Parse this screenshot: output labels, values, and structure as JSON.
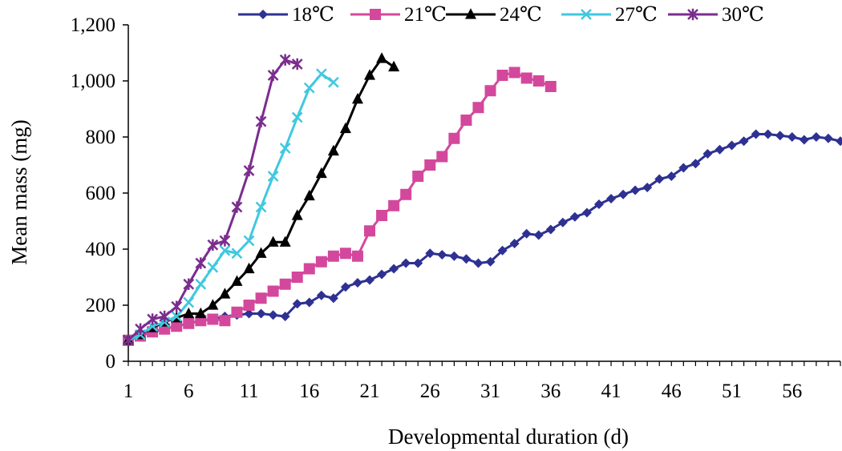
{
  "chart_data": {
    "type": "line",
    "xlabel": "Developmental duration (d)",
    "ylabel": "Mean mass (mg)",
    "xlim": [
      1,
      60
    ],
    "ylim": [
      0,
      1200
    ],
    "x_ticks": [
      1,
      6,
      11,
      16,
      21,
      26,
      31,
      36,
      41,
      46,
      51,
      56
    ],
    "x_tick_labels": [
      "1",
      "6",
      "11",
      "16",
      "21",
      "26",
      "31",
      "36",
      "41",
      "46",
      "51",
      "56"
    ],
    "y_ticks": [
      0,
      200,
      400,
      600,
      800,
      1000,
      1200
    ],
    "y_tick_labels": [
      "0",
      "200",
      "400",
      "600",
      "800",
      "1,000",
      "1,200"
    ],
    "grid": false,
    "legend_position": "top",
    "series": [
      {
        "name": "18℃",
        "color": "#2e3192",
        "marker": "diamond",
        "x": [
          1,
          2,
          3,
          4,
          5,
          6,
          7,
          8,
          9,
          10,
          11,
          12,
          13,
          14,
          15,
          16,
          17,
          18,
          19,
          20,
          21,
          22,
          23,
          24,
          25,
          26,
          27,
          28,
          29,
          30,
          31,
          32,
          33,
          34,
          35,
          36,
          37,
          38,
          39,
          40,
          41,
          42,
          43,
          44,
          45,
          46,
          47,
          48,
          49,
          50,
          51,
          52,
          53,
          54,
          55,
          56,
          57,
          58,
          59,
          60
        ],
        "values": [
          75,
          90,
          105,
          115,
          125,
          135,
          145,
          150,
          160,
          165,
          170,
          170,
          165,
          160,
          205,
          210,
          235,
          225,
          265,
          280,
          290,
          310,
          330,
          350,
          350,
          385,
          380,
          375,
          365,
          350,
          355,
          395,
          420,
          455,
          450,
          470,
          495,
          515,
          530,
          560,
          580,
          595,
          610,
          620,
          650,
          660,
          690,
          705,
          740,
          755,
          770,
          785,
          810,
          810,
          805,
          800,
          790,
          800,
          795,
          785
        ]
      },
      {
        "name": "21℃",
        "color": "#d3489c",
        "marker": "square",
        "x": [
          1,
          2,
          3,
          4,
          5,
          6,
          7,
          8,
          9,
          10,
          11,
          12,
          13,
          14,
          15,
          16,
          17,
          18,
          19,
          20,
          21,
          22,
          23,
          24,
          25,
          26,
          27,
          28,
          29,
          30,
          31,
          32,
          33,
          34,
          35,
          36
        ],
        "values": [
          75,
          90,
          105,
          115,
          125,
          135,
          145,
          150,
          145,
          175,
          200,
          225,
          250,
          275,
          300,
          330,
          355,
          375,
          385,
          375,
          465,
          520,
          555,
          595,
          660,
          700,
          730,
          795,
          860,
          905,
          965,
          1020,
          1030,
          1010,
          1000,
          980
        ]
      },
      {
        "name": "24℃",
        "color": "#000000",
        "marker": "triangle",
        "x": [
          1,
          2,
          3,
          4,
          5,
          6,
          7,
          8,
          9,
          10,
          11,
          12,
          13,
          14,
          15,
          16,
          17,
          18,
          19,
          20,
          21,
          22,
          23
        ],
        "values": [
          75,
          95,
          120,
          140,
          155,
          170,
          170,
          200,
          240,
          285,
          330,
          385,
          425,
          425,
          520,
          590,
          670,
          750,
          830,
          935,
          1020,
          1080,
          1050
        ]
      },
      {
        "name": "27℃",
        "color": "#40c8e0",
        "marker": "x",
        "x": [
          1,
          2,
          3,
          4,
          5,
          6,
          7,
          8,
          9,
          10,
          11,
          12,
          13,
          14,
          15,
          16,
          17,
          18
        ],
        "values": [
          75,
          95,
          125,
          140,
          160,
          210,
          275,
          335,
          395,
          385,
          430,
          550,
          660,
          760,
          870,
          975,
          1025,
          995
        ]
      },
      {
        "name": "30℃",
        "color": "#7b2d8e",
        "marker": "star",
        "x": [
          1,
          2,
          3,
          4,
          5,
          6,
          7,
          8,
          9,
          10,
          11,
          12,
          13,
          14,
          15
        ],
        "values": [
          75,
          115,
          150,
          160,
          195,
          275,
          350,
          415,
          430,
          550,
          680,
          855,
          1020,
          1075,
          1060
        ]
      }
    ]
  }
}
